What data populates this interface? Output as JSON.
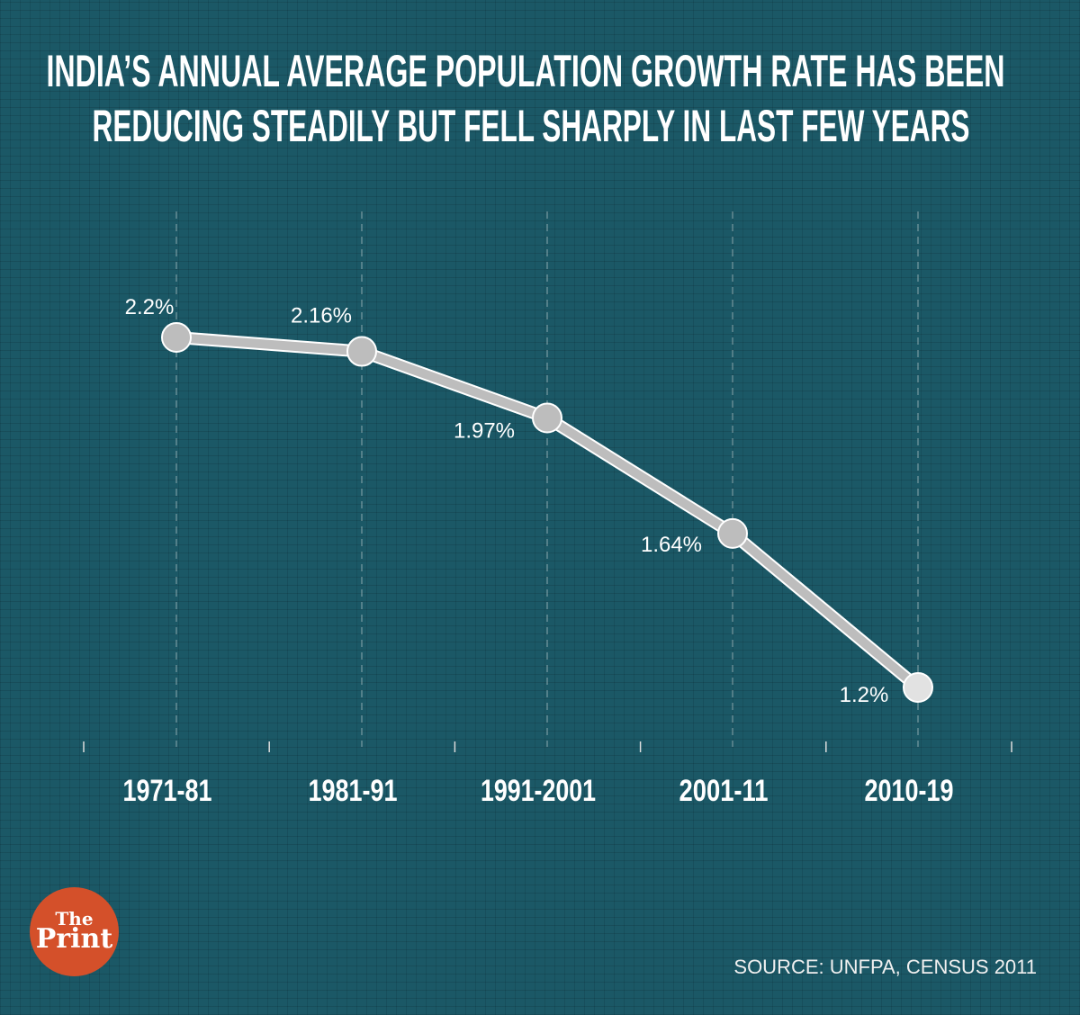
{
  "title_lines": [
    "INDIA’S ANNUAL AVERAGE POPULATION GROWTH RATE HAS BEEN",
    "REDUCING STEADILY BUT FELL SHARPLY IN LAST FEW YEARS"
  ],
  "source": "SOURCE: UNFPA, CENSUS 2011",
  "logo": {
    "line1": "The",
    "line2": "Print"
  },
  "colors": {
    "background": "#1b5866",
    "line": "#bdbdbd",
    "logo": "#d4502a"
  },
  "chart_data": {
    "type": "line",
    "title": "INDIA’S ANNUAL AVERAGE POPULATION GROWTH RATE HAS BEEN REDUCING STEADILY BUT FELL SHARPLY IN LAST FEW YEARS",
    "categories": [
      "1971-81",
      "1981-91",
      "1991-2001",
      "2001-11",
      "2010-19"
    ],
    "values": [
      2.2,
      2.16,
      1.97,
      1.64,
      1.2
    ],
    "data_labels": [
      "2.2%",
      "2.16%",
      "1.97%",
      "1.64%",
      "1.2%"
    ],
    "xlabel": "",
    "ylabel": "",
    "grid": "vertical dashed",
    "unit": "%"
  }
}
